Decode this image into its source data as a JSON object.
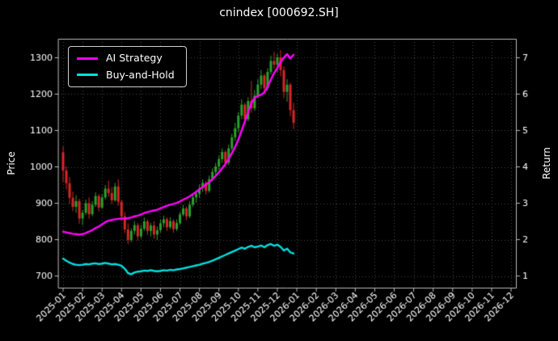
{
  "chart_data": {
    "type": "candlestick+line",
    "title": "cnindex [000692.SH]",
    "ylabel_left": "Price",
    "ylabel_right": "Return",
    "grid": "dotted",
    "legend_position": "upper-left",
    "x_tick_labels": [
      "2025-01",
      "2025-02",
      "2025-03",
      "2025-04",
      "2025-05",
      "2025-06",
      "2025-07",
      "2025-08",
      "2025-09",
      "2025-10",
      "2025-11",
      "2025-12",
      "2026-01",
      "2026-02",
      "2026-03",
      "2026-04",
      "2026-05",
      "2026-06",
      "2026-07",
      "2026-08",
      "2026-09",
      "2026-10",
      "2026-11",
      "2026-12"
    ],
    "y_ticks_left": [
      700,
      800,
      900,
      1000,
      1100,
      1200,
      1300
    ],
    "y_ticks_right": [
      1,
      2,
      3,
      4,
      5,
      6,
      7
    ],
    "ylim_left": [
      668,
      1352
    ],
    "x_domain_months": [
      -0.25,
      23.25
    ],
    "candles_months_span": 12,
    "colors": {
      "bg": "#000000",
      "text": "#ffffff",
      "spine": "#bbbbbb",
      "grid": "#4a4a4a",
      "up": "#2ca02c",
      "down": "#d62728",
      "ai": "#ff00ff",
      "bh": "#00e0e0"
    },
    "legend": {
      "entries": [
        {
          "label": "AI Strategy",
          "color": "#ff00ff"
        },
        {
          "label": "Buy-and-Hold",
          "color": "#00e0e0"
        }
      ]
    },
    "candles": [
      [
        1040,
        1056,
        958,
        990
      ],
      [
        990,
        1002,
        938,
        955
      ],
      [
        955,
        972,
        898,
        915
      ],
      [
        915,
        932,
        878,
        890
      ],
      [
        890,
        922,
        874,
        906
      ],
      [
        906,
        912,
        843,
        858
      ],
      [
        858,
        882,
        840,
        874
      ],
      [
        874,
        910,
        868,
        900
      ],
      [
        900,
        916,
        858,
        870
      ],
      [
        870,
        906,
        864,
        896
      ],
      [
        896,
        930,
        890,
        920
      ],
      [
        920,
        926,
        878,
        888
      ],
      [
        888,
        926,
        884,
        916
      ],
      [
        916,
        950,
        910,
        940
      ],
      [
        940,
        962,
        918,
        928
      ],
      [
        928,
        944,
        898,
        908
      ],
      [
        908,
        956,
        904,
        946
      ],
      [
        946,
        966,
        893,
        904
      ],
      [
        904,
        910,
        853,
        864
      ],
      [
        864,
        876,
        818,
        828
      ],
      [
        828,
        845,
        788,
        799
      ],
      [
        799,
        831,
        793,
        824
      ],
      [
        824,
        851,
        814,
        840
      ],
      [
        840,
        846,
        798,
        809
      ],
      [
        809,
        841,
        803,
        830
      ],
      [
        830,
        861,
        824,
        850
      ],
      [
        850,
        856,
        813,
        824
      ],
      [
        824,
        846,
        809,
        839
      ],
      [
        839,
        851,
        803,
        814
      ],
      [
        814,
        836,
        799,
        826
      ],
      [
        826,
        856,
        820,
        845
      ],
      [
        845,
        866,
        834,
        856
      ],
      [
        856,
        861,
        824,
        834
      ],
      [
        834,
        861,
        829,
        851
      ],
      [
        851,
        856,
        819,
        829
      ],
      [
        829,
        856,
        824,
        846
      ],
      [
        846,
        876,
        840,
        869
      ],
      [
        869,
        896,
        864,
        886
      ],
      [
        886,
        891,
        854,
        864
      ],
      [
        864,
        906,
        859,
        896
      ],
      [
        896,
        926,
        890,
        916
      ],
      [
        916,
        936,
        901,
        926
      ],
      [
        926,
        951,
        915,
        941
      ],
      [
        941,
        966,
        931,
        956
      ],
      [
        956,
        961,
        924,
        934
      ],
      [
        934,
        976,
        929,
        966
      ],
      [
        966,
        996,
        960,
        986
      ],
      [
        986,
        1011,
        975,
        1001
      ],
      [
        1001,
        1031,
        991,
        1021
      ],
      [
        1021,
        1051,
        1011,
        1041
      ],
      [
        1041,
        1046,
        999,
        1011
      ],
      [
        1011,
        1061,
        1005,
        1051
      ],
      [
        1051,
        1091,
        1045,
        1081
      ],
      [
        1081,
        1121,
        1071,
        1106
      ],
      [
        1106,
        1151,
        1095,
        1141
      ],
      [
        1141,
        1186,
        1131,
        1171
      ],
      [
        1171,
        1176,
        1119,
        1131
      ],
      [
        1131,
        1191,
        1125,
        1181
      ],
      [
        1181,
        1236,
        1149,
        1161
      ],
      [
        1161,
        1211,
        1154,
        1196
      ],
      [
        1196,
        1241,
        1189,
        1226
      ],
      [
        1226,
        1266,
        1214,
        1251
      ],
      [
        1251,
        1256,
        1199,
        1216
      ],
      [
        1216,
        1271,
        1209,
        1261
      ],
      [
        1261,
        1306,
        1254,
        1291
      ],
      [
        1291,
        1316,
        1269,
        1281
      ],
      [
        1281,
        1311,
        1259,
        1301
      ],
      [
        1301,
        1321,
        1249,
        1266
      ],
      [
        1266,
        1276,
        1189,
        1206
      ],
      [
        1206,
        1241,
        1179,
        1226
      ],
      [
        1226,
        1231,
        1139,
        1156
      ],
      [
        1156,
        1176,
        1104,
        1121
      ]
    ],
    "series": [
      {
        "name": "AI Strategy",
        "color_key": "ai",
        "values": [
          822,
          820,
          818,
          816,
          815,
          814,
          815,
          818,
          822,
          826,
          832,
          836,
          842,
          848,
          852,
          854,
          856,
          857,
          858,
          858,
          859,
          861,
          864,
          866,
          869,
          873,
          876,
          878,
          880,
          882,
          886,
          890,
          893,
          896,
          898,
          901,
          905,
          910,
          914,
          919,
          925,
          931,
          938,
          945,
          951,
          958,
          966,
          975,
          985,
          996,
          1008,
          1022,
          1038,
          1055,
          1075,
          1100,
          1125,
          1150,
          1175,
          1190,
          1195,
          1198,
          1205,
          1220,
          1240,
          1258,
          1272,
          1288,
          1300,
          1310,
          1298,
          1308
        ]
      },
      {
        "name": "Buy-and-Hold",
        "color_key": "bh",
        "values": [
          748,
          742,
          737,
          733,
          731,
          730,
          731,
          733,
          732,
          734,
          735,
          733,
          734,
          736,
          734,
          732,
          733,
          731,
          728,
          720,
          708,
          705,
          710,
          712,
          713,
          715,
          714,
          716,
          714,
          713,
          714,
          716,
          715,
          717,
          716,
          718,
          719,
          721,
          723,
          725,
          727,
          729,
          731,
          734,
          736,
          739,
          742,
          746,
          750,
          754,
          758,
          762,
          766,
          770,
          774,
          778,
          775,
          780,
          783,
          779,
          781,
          784,
          779,
          785,
          788,
          783,
          786,
          780,
          770,
          775,
          765,
          762
        ]
      }
    ]
  }
}
